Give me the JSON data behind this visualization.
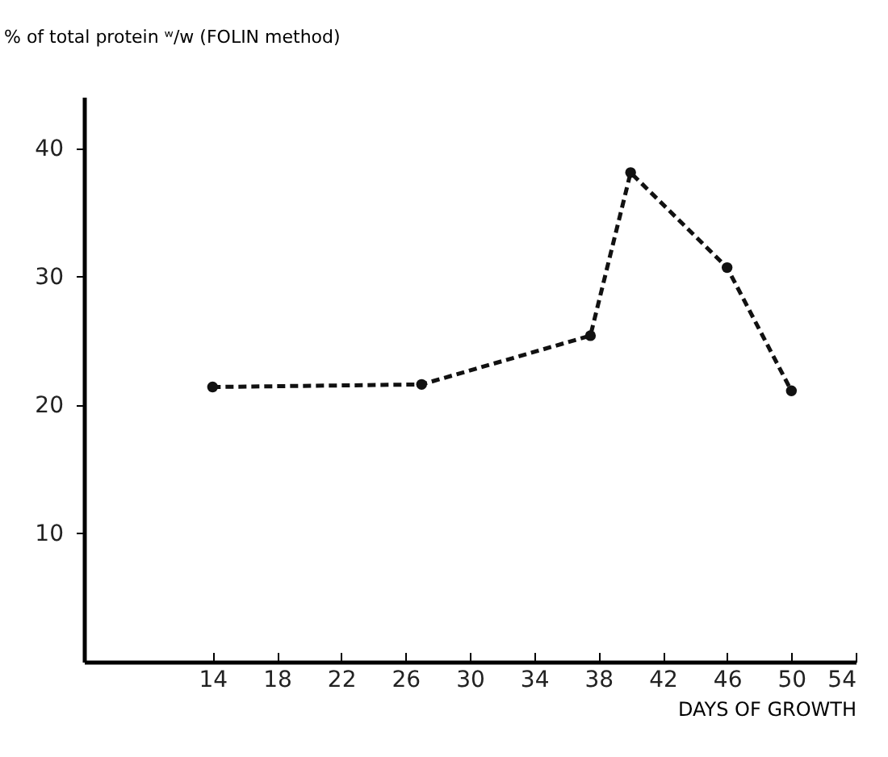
{
  "chart_data": {
    "type": "line",
    "ylabel": "% of total protein ʷ/w (FOLIN method)",
    "xlabel": "DAYS OF GROWTH",
    "x": [
      14,
      27,
      37.5,
      40,
      46,
      50
    ],
    "series": [
      {
        "color": "#111111",
        "values": [
          21.4,
          21.6,
          25.4,
          38.1,
          30.7,
          21.1
        ]
      }
    ],
    "xlim": [
      6,
      54
    ],
    "xticks": [
      14,
      18,
      22,
      26,
      30,
      34,
      38,
      42,
      46,
      50,
      54
    ],
    "ylim": [
      0,
      44
    ],
    "yticks": [
      10,
      20,
      30,
      40
    ],
    "grid": false,
    "legend": false,
    "marker": "circle",
    "line_style": "dashed"
  }
}
